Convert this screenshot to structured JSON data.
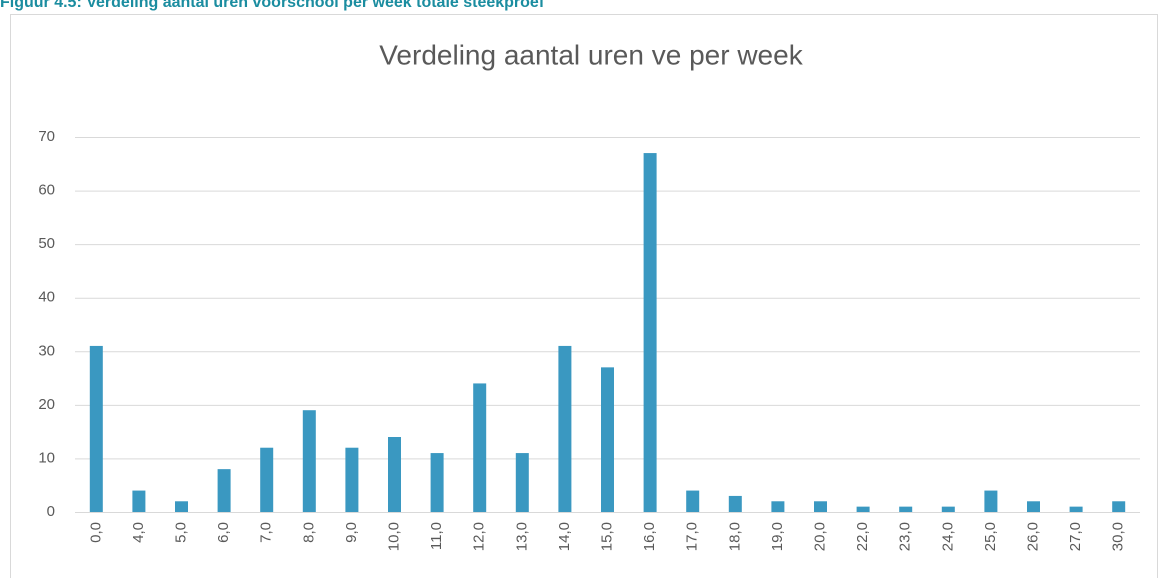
{
  "caption": "Figuur 4.5: Verdeling aantal uren voorschool per week totale steekproef",
  "chart_data": {
    "type": "bar",
    "title": "Verdeling aantal uren ve per week",
    "categories": [
      "0,0",
      "4,0",
      "5,0",
      "6,0",
      "7,0",
      "8,0",
      "9,0",
      "10,0",
      "11,0",
      "12,0",
      "13,0",
      "14,0",
      "15,0",
      "16,0",
      "17,0",
      "18,0",
      "19,0",
      "20,0",
      "22,0",
      "23,0",
      "24,0",
      "25,0",
      "26,0",
      "27,0",
      "30,0"
    ],
    "values": [
      31,
      4,
      2,
      8,
      12,
      19,
      12,
      14,
      11,
      24,
      11,
      31,
      27,
      67,
      4,
      3,
      2,
      2,
      1,
      1,
      1,
      4,
      2,
      1,
      2
    ],
    "color": "#3a98c1",
    "ylim": [
      0,
      70
    ],
    "yticks": [
      0,
      10,
      20,
      30,
      40,
      50,
      60,
      70
    ],
    "grid": true
  }
}
